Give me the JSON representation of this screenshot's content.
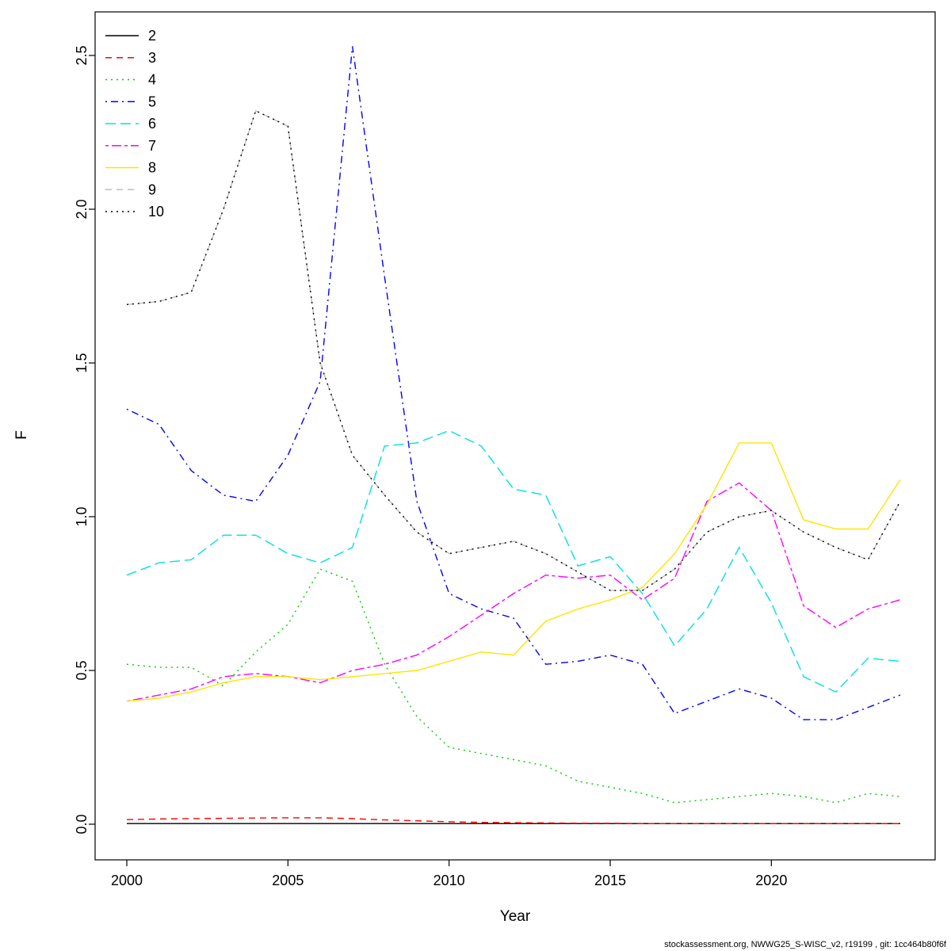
{
  "figure": {
    "background": "#ffffff"
  },
  "footer": {
    "text": "stockassessment.org, NWWG25_S-WISC_v2, r19199 , git: 1cc464b80f6f"
  },
  "chart_data": {
    "type": "line",
    "title": "",
    "xlabel": "Year",
    "ylabel": "F",
    "grid": false,
    "legend_position": "top-left",
    "xlim": [
      1999,
      2025
    ],
    "ylim": [
      0,
      2.55
    ],
    "x_ticks": [
      2000,
      2005,
      2010,
      2015,
      2020
    ],
    "y_ticks": [
      0,
      0.5,
      1,
      1.5,
      2,
      2.5
    ],
    "y_tick_labels": [
      "0.0",
      "0.5",
      "1.0",
      "1.5",
      "2.0",
      "2.5"
    ],
    "x": [
      2000,
      2001,
      2002,
      2003,
      2004,
      2005,
      2006,
      2007,
      2008,
      2009,
      2010,
      2011,
      2012,
      2013,
      2014,
      2015,
      2016,
      2017,
      2018,
      2019,
      2020,
      2021,
      2022,
      2023,
      2024
    ],
    "series": [
      {
        "name": "2",
        "color": "#000000",
        "lty": "solid",
        "values": [
          0.002,
          0.002,
          0.002,
          0.002,
          0.002,
          0.002,
          0.002,
          0.002,
          0.002,
          0.002,
          0.002,
          0.002,
          0.002,
          0.002,
          0.002,
          0.002,
          0.002,
          0.002,
          0.002,
          0.002,
          0.002,
          0.002,
          0.002,
          0.002,
          0.002
        ]
      },
      {
        "name": "3",
        "color": "#ff0000",
        "lty": "dashed",
        "values": [
          0.015,
          0.017,
          0.018,
          0.019,
          0.02,
          0.021,
          0.021,
          0.018,
          0.014,
          0.011,
          0.008,
          0.006,
          0.005,
          0.004,
          0.003,
          0.003,
          0.002,
          0.002,
          0.002,
          0.002,
          0.002,
          0.002,
          0.002,
          0.002,
          0.002
        ]
      },
      {
        "name": "4",
        "color": "#00cd00",
        "lty": "dotted",
        "values": [
          0.52,
          0.51,
          0.51,
          0.45,
          0.56,
          0.65,
          0.83,
          0.79,
          0.52,
          0.35,
          0.25,
          0.23,
          0.21,
          0.19,
          0.14,
          0.12,
          0.1,
          0.07,
          0.08,
          0.09,
          0.1,
          0.09,
          0.07,
          0.1,
          0.09
        ]
      },
      {
        "name": "5",
        "color": "#0000ff",
        "lty": "dotdash",
        "values": [
          1.35,
          1.3,
          1.15,
          1.07,
          1.05,
          1.2,
          1.44,
          2.53,
          1.78,
          1.05,
          0.75,
          0.7,
          0.67,
          0.52,
          0.53,
          0.55,
          0.52,
          0.36,
          0.4,
          0.44,
          0.41,
          0.34,
          0.34,
          0.38,
          0.42
        ]
      },
      {
        "name": "6",
        "color": "#00e0e0",
        "lty": "longdash",
        "values": [
          0.81,
          0.85,
          0.86,
          0.94,
          0.94,
          0.88,
          0.85,
          0.9,
          1.23,
          1.24,
          1.28,
          1.23,
          1.09,
          1.07,
          0.84,
          0.87,
          0.75,
          0.58,
          0.7,
          0.9,
          0.72,
          0.48,
          0.43,
          0.54,
          0.53
        ]
      },
      {
        "name": "7",
        "color": "#ff00ff",
        "lty": "twodash",
        "values": [
          0.4,
          0.42,
          0.44,
          0.48,
          0.49,
          0.48,
          0.46,
          0.5,
          0.52,
          0.55,
          0.61,
          0.68,
          0.75,
          0.81,
          0.8,
          0.81,
          0.73,
          0.8,
          1.05,
          1.11,
          1.02,
          0.71,
          0.64,
          0.7,
          0.73
        ]
      },
      {
        "name": "8",
        "color": "#ffe400",
        "lty": "solid",
        "values": [
          0.4,
          0.41,
          0.43,
          0.46,
          0.48,
          0.48,
          0.47,
          0.48,
          0.49,
          0.5,
          0.53,
          0.56,
          0.55,
          0.66,
          0.7,
          0.73,
          0.77,
          0.88,
          1.04,
          1.24,
          1.24,
          0.99,
          0.96,
          0.96,
          1.12
        ]
      },
      {
        "name": "9",
        "color": "#bebebe",
        "lty": "dashed",
        "values": [
          1.69,
          1.7,
          1.73,
          2.0,
          2.32,
          2.27,
          1.5,
          1.2,
          1.07,
          0.95,
          0.88,
          0.9,
          0.92,
          0.88,
          0.82,
          0.76,
          0.76,
          0.83,
          0.95,
          1.0,
          1.02,
          0.95,
          0.9,
          0.86,
          1.05
        ]
      },
      {
        "name": "10",
        "color": "#000000",
        "lty": "dotted",
        "values": [
          1.69,
          1.7,
          1.73,
          2.0,
          2.32,
          2.27,
          1.5,
          1.2,
          1.07,
          0.95,
          0.88,
          0.9,
          0.92,
          0.88,
          0.82,
          0.76,
          0.76,
          0.83,
          0.95,
          1.0,
          1.02,
          0.95,
          0.9,
          0.86,
          1.05
        ]
      }
    ]
  }
}
